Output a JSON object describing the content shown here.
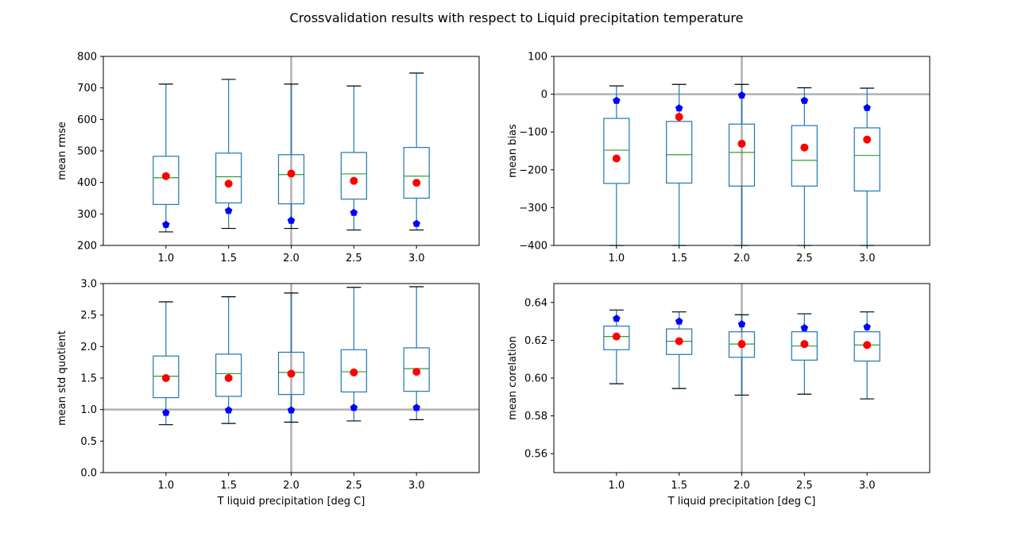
{
  "figure": {
    "suptitle": "Crossvalidation results with respect to Liquid precipitation temperature"
  },
  "colors": {
    "box": "#1f77b4",
    "median": "#2ca02c",
    "mean_marker": "#ff0000",
    "reference_marker": "#0000ff",
    "reference_line": "#b0b0b0",
    "whisker_cap": "#000000"
  },
  "chart_data": [
    {
      "type": "box",
      "title": "",
      "xlabel": "",
      "ylabel": "mean rmse",
      "categories": [
        "1.0",
        "1.5",
        "2.0",
        "2.5",
        "3.0"
      ],
      "xlim": [
        0,
        6
      ],
      "ylim": [
        200,
        800
      ],
      "yticks": [
        200,
        300,
        400,
        500,
        600,
        700,
        800
      ],
      "ytick_labels": [
        "200",
        "300",
        "400",
        "500",
        "600",
        "700",
        "800"
      ],
      "hlines": [],
      "vline_category": "2.0",
      "boxes": [
        {
          "whislo": 243,
          "q1": 330,
          "med": 415,
          "q3": 483,
          "whishi": 712,
          "mean_marker": 420,
          "reference_marker": 266
        },
        {
          "whislo": 254,
          "q1": 335,
          "med": 418,
          "q3": 493,
          "whishi": 727,
          "mean_marker": 396,
          "reference_marker": 310
        },
        {
          "whislo": 254,
          "q1": 332,
          "med": 425,
          "q3": 488,
          "whishi": 712,
          "mean_marker": 428,
          "reference_marker": 279
        },
        {
          "whislo": 249,
          "q1": 347,
          "med": 427,
          "q3": 495,
          "whishi": 706,
          "mean_marker": 405,
          "reference_marker": 304
        },
        {
          "whislo": 249,
          "q1": 350,
          "med": 420,
          "q3": 511,
          "whishi": 747,
          "mean_marker": 399,
          "reference_marker": 269
        }
      ]
    },
    {
      "type": "box",
      "title": "",
      "xlabel": "",
      "ylabel": "mean bias",
      "categories": [
        "1.0",
        "1.5",
        "2.0",
        "2.5",
        "3.0"
      ],
      "xlim": [
        0,
        6
      ],
      "ylim": [
        -400,
        100
      ],
      "yticks": [
        -400,
        -300,
        -200,
        -100,
        0,
        100
      ],
      "ytick_labels": [
        "−400",
        "−300",
        "−200",
        "−100",
        "0",
        "100"
      ],
      "hlines": [
        0
      ],
      "vline_category": "2.0",
      "boxes": [
        {
          "whislo": -400,
          "q1": -236,
          "med": -148,
          "q3": -64,
          "whishi": 22,
          "mean_marker": -170,
          "reference_marker": -17
        },
        {
          "whislo": -400,
          "q1": -235,
          "med": -160,
          "q3": -72,
          "whishi": 26,
          "mean_marker": -60,
          "reference_marker": -37
        },
        {
          "whislo": -400,
          "q1": -243,
          "med": -154,
          "q3": -79,
          "whishi": 26,
          "mean_marker": -131,
          "reference_marker": -3
        },
        {
          "whislo": -400,
          "q1": -243,
          "med": -175,
          "q3": -83,
          "whishi": 17,
          "mean_marker": -141,
          "reference_marker": -17
        },
        {
          "whislo": -400,
          "q1": -256,
          "med": -162,
          "q3": -89,
          "whishi": 16,
          "mean_marker": -120,
          "reference_marker": -36
        }
      ]
    },
    {
      "type": "box",
      "title": "",
      "xlabel": "T liquid precipitation [deg C]",
      "ylabel": "mean std quotient",
      "categories": [
        "1.0",
        "1.5",
        "2.0",
        "2.5",
        "3.0"
      ],
      "xlim": [
        0,
        6
      ],
      "ylim": [
        0,
        3
      ],
      "yticks": [
        0,
        0.5,
        1,
        1.5,
        2,
        2.5,
        3
      ],
      "ytick_labels": [
        "0.0",
        "0.5",
        "1.0",
        "1.5",
        "2.0",
        "2.5",
        "3.0"
      ],
      "hlines": [
        1
      ],
      "vline_category": "2.0",
      "boxes": [
        {
          "whislo": 0.76,
          "q1": 1.19,
          "med": 1.53,
          "q3": 1.85,
          "whishi": 2.71,
          "mean_marker": 1.5,
          "reference_marker": 0.95
        },
        {
          "whislo": 0.78,
          "q1": 1.21,
          "med": 1.57,
          "q3": 1.88,
          "whishi": 2.79,
          "mean_marker": 1.5,
          "reference_marker": 0.99
        },
        {
          "whislo": 0.8,
          "q1": 1.24,
          "med": 1.59,
          "q3": 1.91,
          "whishi": 2.85,
          "mean_marker": 1.57,
          "reference_marker": 0.99
        },
        {
          "whislo": 0.82,
          "q1": 1.28,
          "med": 1.6,
          "q3": 1.95,
          "whishi": 2.94,
          "mean_marker": 1.59,
          "reference_marker": 1.03
        },
        {
          "whislo": 0.84,
          "q1": 1.29,
          "med": 1.65,
          "q3": 1.98,
          "whishi": 2.95,
          "mean_marker": 1.6,
          "reference_marker": 1.03
        }
      ]
    },
    {
      "type": "box",
      "title": "",
      "xlabel": "T liquid precipitation [deg C]",
      "ylabel": "mean corelation",
      "categories": [
        "1.0",
        "1.5",
        "2.0",
        "2.5",
        "3.0"
      ],
      "xlim": [
        0,
        6
      ],
      "ylim": [
        0.55,
        0.65
      ],
      "yticks": [
        0.56,
        0.58,
        0.6,
        0.62,
        0.64
      ],
      "ytick_labels": [
        "0.56",
        "0.58",
        "0.60",
        "0.62",
        "0.64"
      ],
      "hlines": [],
      "vline_category": "2.0",
      "boxes": [
        {
          "whislo": 0.597,
          "q1": 0.615,
          "med": 0.622,
          "q3": 0.6275,
          "whishi": 0.636,
          "mean_marker": 0.622,
          "reference_marker": 0.6315
        },
        {
          "whislo": 0.5945,
          "q1": 0.6125,
          "med": 0.6195,
          "q3": 0.626,
          "whishi": 0.635,
          "mean_marker": 0.6195,
          "reference_marker": 0.63
        },
        {
          "whislo": 0.591,
          "q1": 0.611,
          "med": 0.618,
          "q3": 0.6245,
          "whishi": 0.6335,
          "mean_marker": 0.618,
          "reference_marker": 0.6285
        },
        {
          "whislo": 0.5915,
          "q1": 0.6095,
          "med": 0.617,
          "q3": 0.6245,
          "whishi": 0.634,
          "mean_marker": 0.618,
          "reference_marker": 0.6265
        },
        {
          "whislo": 0.589,
          "q1": 0.609,
          "med": 0.6175,
          "q3": 0.6245,
          "whishi": 0.635,
          "mean_marker": 0.6175,
          "reference_marker": 0.627
        }
      ]
    }
  ]
}
